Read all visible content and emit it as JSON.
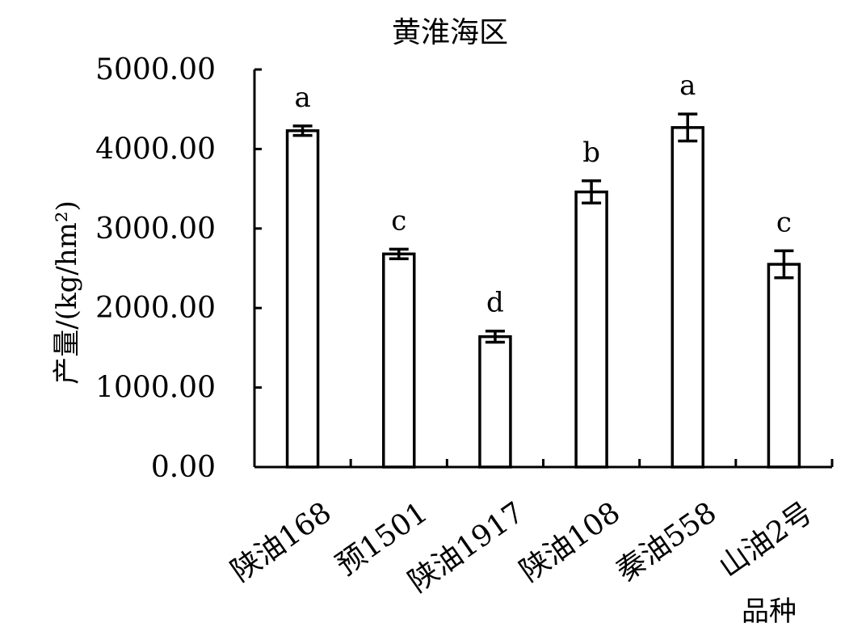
{
  "chart_data": {
    "type": "bar",
    "title": "黄淮海区",
    "xlabel": "品种",
    "ylabel": "产量/(kg/hm²)",
    "ylim": [
      0,
      5000
    ],
    "yticks": [
      "0.00",
      "1000.00",
      "2000.00",
      "3000.00",
      "4000.00",
      "5000.00"
    ],
    "categories": [
      "陕油168",
      "预1501",
      "陕油1917",
      "陕油108",
      "秦油558",
      "山油2号"
    ],
    "values": [
      4230,
      2680,
      1640,
      3460,
      4270,
      2550
    ],
    "errors": [
      60,
      60,
      70,
      140,
      170,
      170
    ],
    "significance": [
      "a",
      "c",
      "d",
      "b",
      "a",
      "c"
    ],
    "grid": false,
    "legend": "none"
  }
}
